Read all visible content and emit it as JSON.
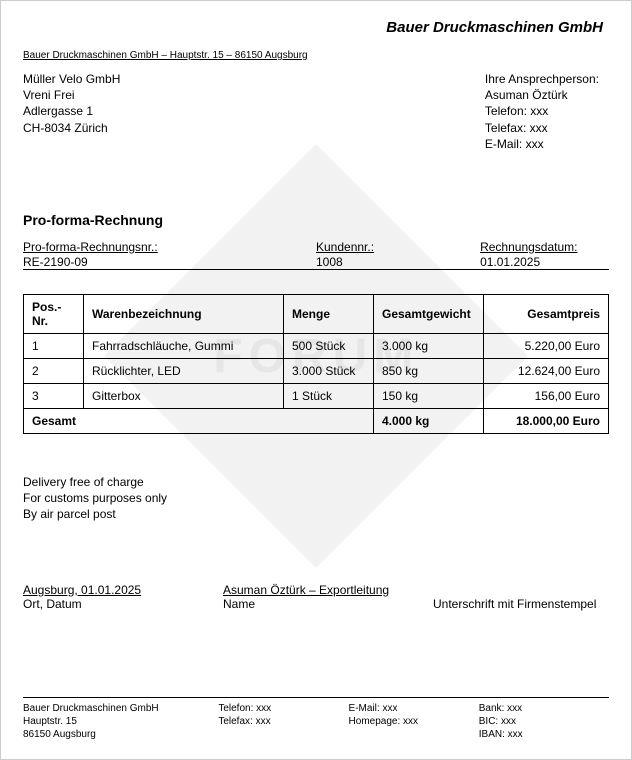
{
  "company_name": "Bauer Druckmaschinen GmbH",
  "sender_line": "Bauer Druckmaschinen GmbH – Hauptstr. 15 – 86150 Augsburg",
  "recipient": {
    "name": "Müller Velo GmbH",
    "person": "Vreni Frei",
    "street": "Adlergasse 1",
    "city": "CH-8034 Zürich"
  },
  "contact": {
    "label": "Ihre Ansprechperson:",
    "person": "Asuman Öztürk",
    "phone": "Telefon: xxx",
    "fax": "Telefax: xxx",
    "email": "E-Mail: xxx"
  },
  "doc_title": "Pro-forma-Rechnung",
  "meta": {
    "invoice_no_label": "Pro-forma-Rechnungsnr.:",
    "invoice_no": "RE-2190-09",
    "customer_no_label": "Kundennr.:",
    "customer_no": "1008",
    "date_label": "Rechnungsdatum:",
    "date": "01.01.2025"
  },
  "table": {
    "headers": {
      "pos": "Pos.-Nr.",
      "desc": "Warenbezeichnung",
      "qty": "Menge",
      "weight": "Gesamtgewicht",
      "price": "Gesamtpreis"
    },
    "rows": [
      {
        "pos": "1",
        "desc": "Fahrradschläuche, Gummi",
        "qty": "500 Stück",
        "weight": "3.000 kg",
        "price": "5.220,00 Euro"
      },
      {
        "pos": "2",
        "desc": "Rücklichter, LED",
        "qty": "3.000 Stück",
        "weight": "850 kg",
        "price": "12.624,00 Euro"
      },
      {
        "pos": "3",
        "desc": "Gitterbox",
        "qty": "1 Stück",
        "weight": "150 kg",
        "price": "156,00 Euro"
      }
    ],
    "total_label": "Gesamt",
    "total_weight": "4.000 kg",
    "total_price": "18.000,00 Euro"
  },
  "notes": {
    "l1": "Delivery free of charge",
    "l2": "For customs purposes only",
    "l3": "By air parcel post"
  },
  "signature": {
    "place_date": "Augsburg, 01.01.2025",
    "name": "Asuman Öztürk – Exportleitung",
    "label_place": "Ort, Datum",
    "label_name": "Name",
    "label_sign": "Unterschrift mit Firmenstempel"
  },
  "footer": {
    "c1": {
      "l1": "Bauer Druckmaschinen GmbH",
      "l2": "Hauptstr. 15",
      "l3": "86150 Augsburg"
    },
    "c2": {
      "l1": "Telefon: xxx",
      "l2": "Telefax: xxx"
    },
    "c3": {
      "l1": "E-Mail: xxx",
      "l2": "Homepage: xxx"
    },
    "c4": {
      "l1": "Bank: xxx",
      "l2": "BIC: xxx",
      "l3": "IBAN: xxx"
    }
  },
  "watermark_text": "FORUM"
}
